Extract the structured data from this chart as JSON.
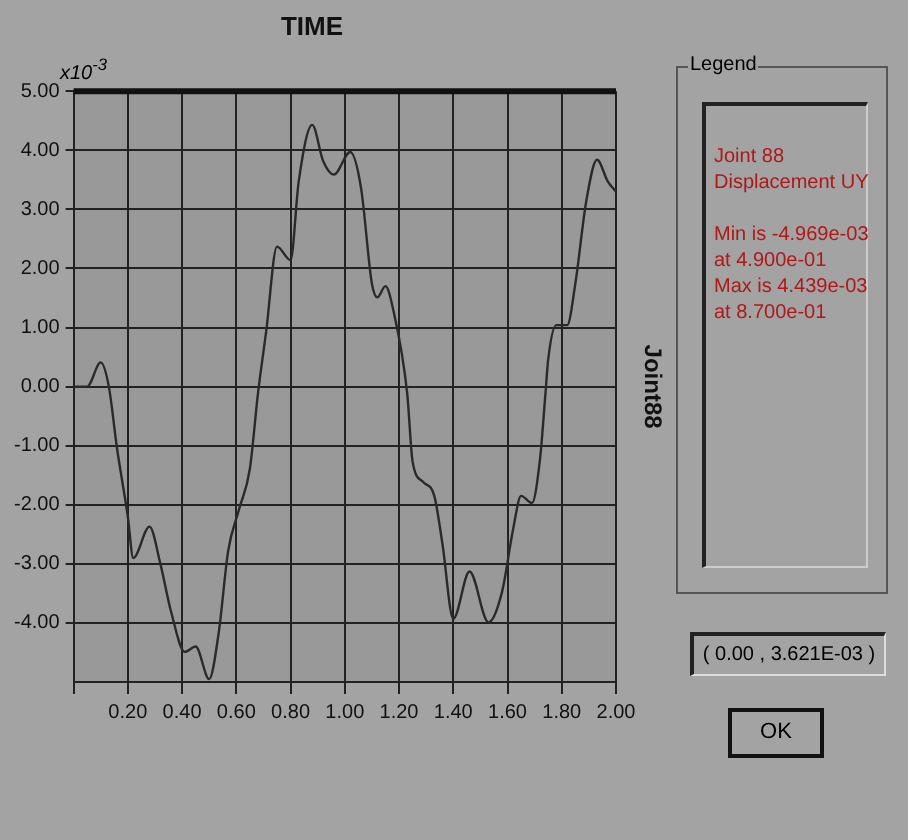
{
  "chart_data": {
    "type": "line",
    "title": "TIME",
    "y2label": "Joint88",
    "annotations": [
      "x10$^{-3}$",
      "Legend",
      "Joint 88",
      "Displacement  UY",
      "Min is -4.969e-03",
      "at 4.900e-01",
      "Max is 4.439e-03",
      "at 8.700e-01",
      "( 0.00 , 3.621E-03 )",
      "OK"
    ],
    "x": [
      0,
      0.05,
      0.1,
      0.13,
      0.16,
      0.2,
      0.22,
      0.28,
      0.32,
      0.36,
      0.41,
      0.45,
      0.5,
      0.535,
      0.57,
      0.61,
      0.65,
      0.68,
      0.71,
      0.75,
      0.8,
      0.83,
      0.88,
      0.92,
      0.96,
      1.02,
      1.06,
      1.1,
      1.12,
      1.15,
      1.18,
      1.23,
      1.25,
      1.29,
      1.33,
      1.36,
      1.4,
      1.46,
      1.53,
      1.58,
      1.62,
      1.65,
      1.69,
      1.72,
      1.74,
      1.75,
      1.78,
      1.82,
      1.85,
      1.89,
      1.93,
      1.97,
      2.0
    ],
    "values": [
      0,
      0,
      0.41,
      0,
      -1.04,
      -2.2,
      -2.9,
      -2.37,
      -3.0,
      -3.82,
      -4.49,
      -4.4,
      -4.95,
      -4.17,
      -2.78,
      -2.08,
      -1.39,
      -0.11,
      0.93,
      2.37,
      2.14,
      3.47,
      4.43,
      3.82,
      3.59,
      3.97,
      3.36,
      1.74,
      1.51,
      1.7,
      1.27,
      -0.11,
      -1.27,
      -1.62,
      -1.85,
      -2.66,
      -3.93,
      -3.13,
      -3.99,
      -3.47,
      -2.43,
      -1.85,
      -1.97,
      -1.22,
      -0.11,
      0.46,
      1.04,
      1.04,
      1.74,
      3.13,
      3.84,
      3.47,
      3.3
    ],
    "color": "#2a2a2a",
    "marker": "none",
    "line_style": "solid",
    "grid": true,
    "legend": false,
    "xlim": [
      0,
      2
    ],
    "xticks": [
      {
        "value": 0,
        "label": null
      },
      {
        "value": 0.2,
        "label": "0.20"
      },
      {
        "value": 0.4,
        "label": "0.40"
      },
      {
        "value": 0.6,
        "label": "0.60"
      },
      {
        "value": 0.8,
        "label": "0.80"
      },
      {
        "value": 1,
        "label": "1.00"
      },
      {
        "value": 1.2,
        "label": "1.20"
      },
      {
        "value": 1.4,
        "label": "1.40"
      },
      {
        "value": 1.6,
        "label": "1.60"
      },
      {
        "value": 1.8,
        "label": "1.80"
      },
      {
        "value": 2,
        "label": "2.00"
      }
    ],
    "ylim": [
      -5,
      5
    ],
    "yticks": [
      {
        "value": -4,
        "label": "-4.00"
      },
      {
        "value": -3,
        "label": "-3.00"
      },
      {
        "value": -2,
        "label": "-2.00"
      },
      {
        "value": -1,
        "label": "-1.00"
      },
      {
        "value": 0,
        "label": "0.00"
      },
      {
        "value": 1,
        "label": "1.00"
      },
      {
        "value": 2,
        "label": "2.00"
      },
      {
        "value": 3,
        "label": "3.00"
      },
      {
        "value": 4,
        "label": "4.00"
      },
      {
        "value": 5,
        "label": "5.00"
      }
    ]
  }
}
